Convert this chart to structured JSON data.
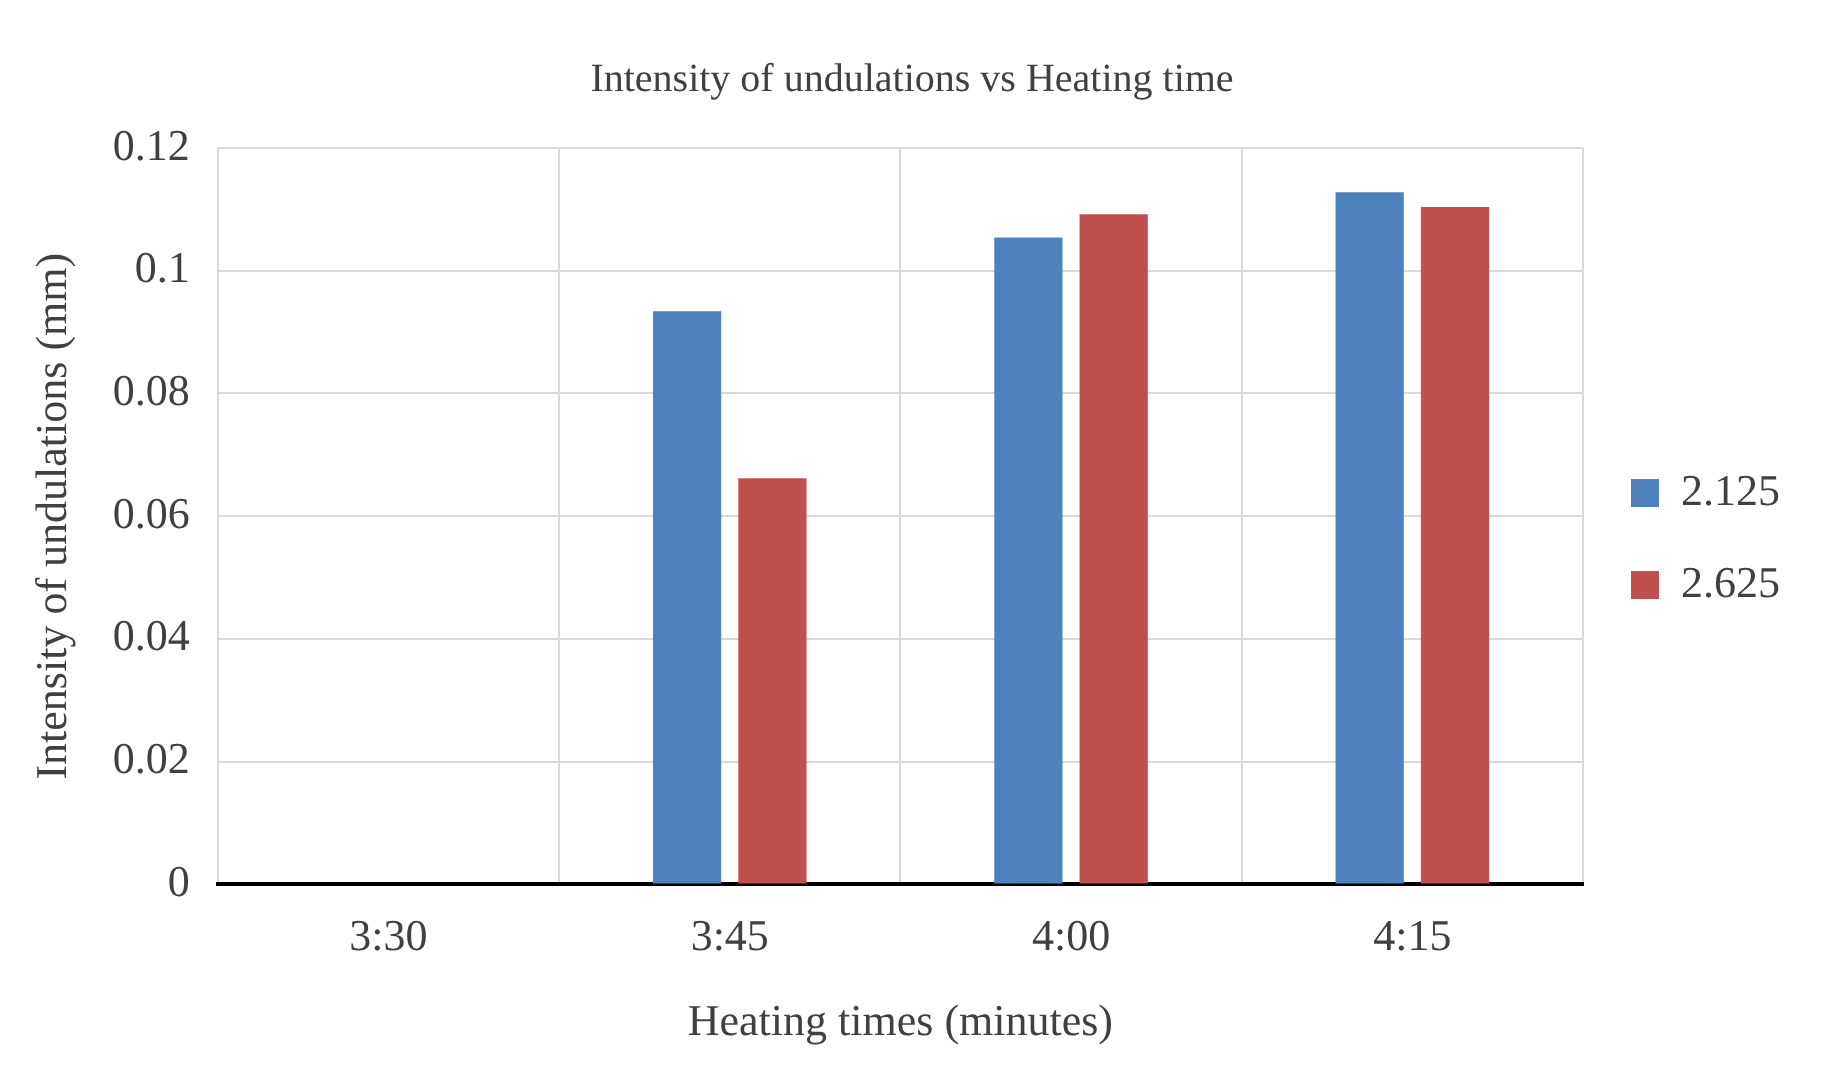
{
  "chart_data": {
    "type": "bar",
    "title": "Intensity of undulations vs Heating time",
    "xlabel": "Heating times (minutes)",
    "ylabel": "Intensity of undulations (mm)",
    "categories": [
      "3:30",
      "3:45",
      "4:00",
      "4:15"
    ],
    "series": [
      {
        "name": "2.125",
        "color": "#4f81bd",
        "values": [
          null,
          0.0934,
          0.1054,
          0.1128
        ]
      },
      {
        "name": "2.625",
        "color": "#c0504d",
        "values": [
          null,
          0.0662,
          0.1092,
          0.1104
        ]
      }
    ],
    "ylim": [
      0,
      0.12
    ],
    "yticks": [
      0,
      0.02,
      0.04,
      0.06,
      0.08,
      0.1,
      0.12
    ],
    "grid": true,
    "legend": "right"
  }
}
